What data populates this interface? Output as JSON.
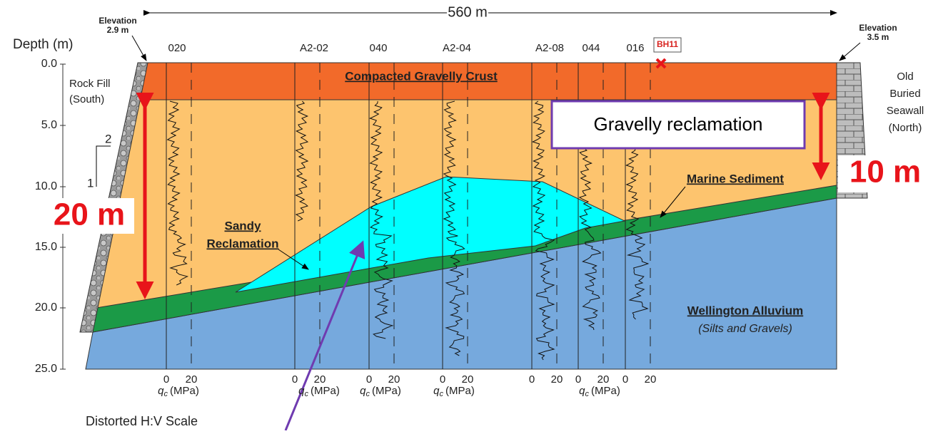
{
  "header": {
    "span": "560 m"
  },
  "elevation_left": {
    "label": "Elevation",
    "value": "2.9 m"
  },
  "elevation_right": {
    "label": "Elevation",
    "value": "3.5 m"
  },
  "depth_axis": {
    "label": "Depth (m)",
    "ticks": [
      "0.0",
      "5.0",
      "10.0",
      "15.0",
      "20.0",
      "25.0"
    ]
  },
  "boreholes": [
    "020",
    "A2-02",
    "040",
    "A2-04",
    "A2-08",
    "044",
    "016"
  ],
  "marker": "BH11",
  "cpt_scale": {
    "ticks": [
      "0",
      "20"
    ],
    "symbol": "q",
    "subscript": "c",
    "unit": "(MPa)"
  },
  "layers": {
    "crust": "Compacted Gravelly Crust",
    "sandy": [
      "Sandy",
      "Reclamation"
    ],
    "marine": "Marine Sediment",
    "alluvium": "Wellington Alluvium",
    "alluvium_note": "(Silts and Gravels)"
  },
  "rock_fill": [
    "Rock Fill",
    "(South)"
  ],
  "seawall": [
    "Old",
    "Buried",
    "Seawall",
    "(North)"
  ],
  "slope": [
    "2",
    "1"
  ],
  "annotations": {
    "gravelly": "Gravelly reclamation",
    "left_thickness": "20 m",
    "right_thickness": "10 m"
  },
  "scale_note": "Distorted H:V Scale"
}
